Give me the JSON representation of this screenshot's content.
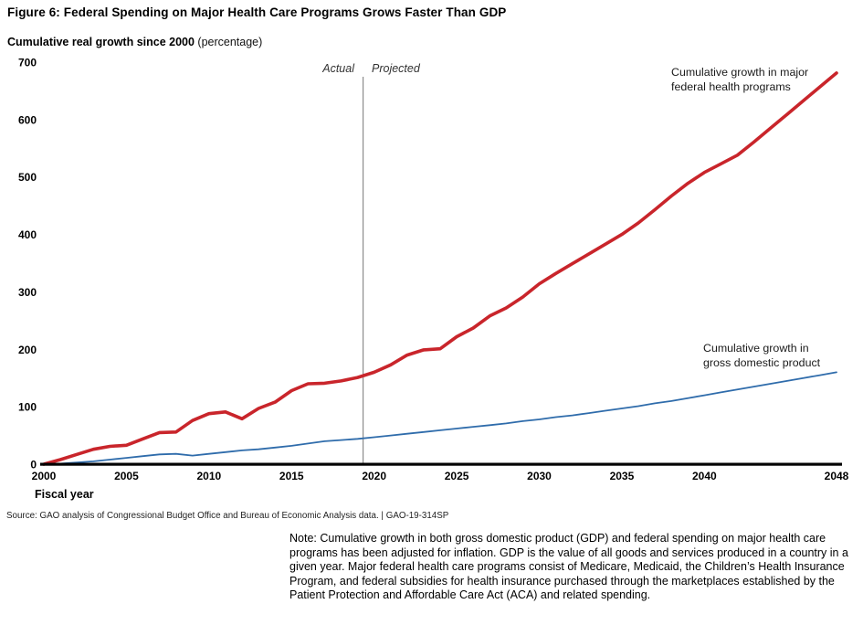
{
  "figure": {
    "title": "Figure 6: Federal Spending on Major Health Care Programs Grows Faster Than GDP",
    "subtitle_bold": "Cumulative real growth since 2000",
    "subtitle_normal": " (percentage)",
    "x_axis_title": "Fiscal year",
    "source": "Source: GAO analysis of Congressional Budget Office and Bureau of Economic Analysis data. | GAO-19-314SP",
    "note": "Note: Cumulative growth in both gross domestic product (GDP) and federal spending on major health care programs has been adjusted for inflation. GDP is the value of all goods and services produced in a country in a given year. Major federal health care programs consist of Medicare, Medicaid, the Children’s Health Insurance Program, and federal subsidies for health insurance purchased through the marketplaces established by the Patient Protection and Affordable Care Act (ACA) and related spending."
  },
  "chart_data": {
    "type": "line",
    "title": "Figure 6: Federal Spending on Major Health Care Programs Grows Faster Than GDP",
    "ylabel": "Cumulative real growth since 2000 (percentage)",
    "xlabel": "Fiscal year",
    "x_range": [
      2000,
      2048
    ],
    "ylim": [
      0,
      700
    ],
    "grid": false,
    "legend_position": "inline-annotations",
    "y_ticks": [
      0,
      100,
      200,
      300,
      400,
      500,
      600,
      700
    ],
    "x_ticks": [
      2000,
      2005,
      2010,
      2015,
      2020,
      2025,
      2030,
      2035,
      2040,
      2048
    ],
    "divider": {
      "year": 2019,
      "left_label": "Actual",
      "right_label": "Projected",
      "color": "#8c8c8c"
    },
    "axis_color": "#000000",
    "series": [
      {
        "name": "Cumulative growth in major federal health programs",
        "label_lines": [
          "Cumulative growth in major",
          "federal health programs"
        ],
        "color": "#c9252b",
        "stroke_width": 3.6,
        "values": [
          0,
          8,
          17,
          26,
          31,
          33,
          44,
          55,
          56,
          76,
          88,
          91,
          79,
          97,
          108,
          128,
          140,
          141,
          145,
          151,
          160,
          173,
          190,
          199,
          201,
          222,
          237,
          258,
          272,
          291,
          314,
          332,
          349,
          366,
          383,
          400,
          420,
          443,
          467,
          489,
          508,
          523,
          538,
          561,
          585,
          609,
          633,
          657,
          681
        ]
      },
      {
        "name": "Cumulative growth in gross domestic product",
        "label_lines": [
          "Cumulative growth in",
          "gross domestic product"
        ],
        "color": "#2f6cab",
        "stroke_width": 1.8,
        "values": [
          0,
          1,
          3,
          5,
          8,
          11,
          14,
          17,
          18,
          15,
          18,
          21,
          24,
          26,
          29,
          32,
          36,
          40,
          42,
          44,
          47,
          50,
          53,
          56,
          59,
          62,
          65,
          68,
          71,
          75,
          78,
          82,
          85,
          89,
          93,
          97,
          101,
          106,
          110,
          115,
          120,
          125,
          130,
          135,
          140,
          145,
          150,
          155,
          160
        ]
      }
    ]
  }
}
